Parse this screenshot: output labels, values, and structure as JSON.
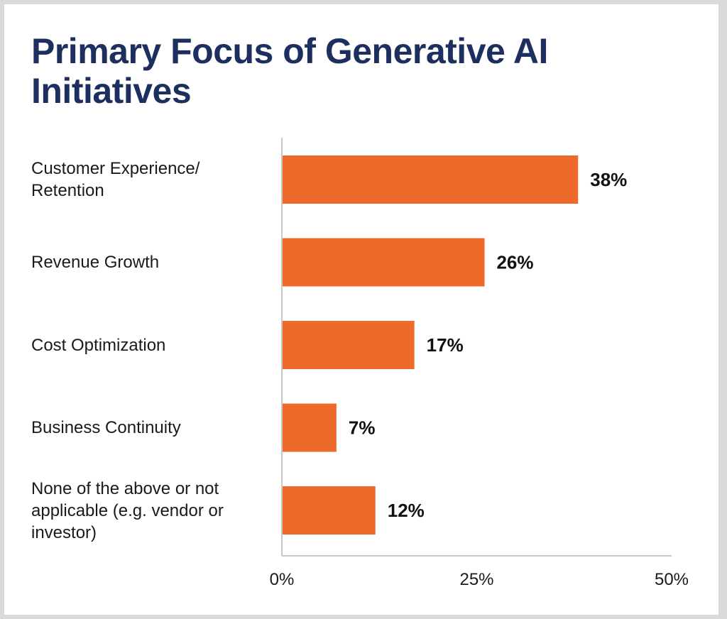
{
  "colors": {
    "bar": "#ee6a2a",
    "axis": "#c8c8c8",
    "title": "#1c2f5e"
  },
  "chart_data": {
    "type": "bar",
    "orientation": "horizontal",
    "title": "Primary Focus of Generative AI Initiatives",
    "categories": [
      "Customer Experience/\nRetention",
      "Revenue Growth",
      "Cost Optimization",
      "Business Continuity",
      "None of the above or not\napplicable (e.g. vendor or\ninvestor)"
    ],
    "values": [
      38,
      26,
      17,
      7,
      12
    ],
    "value_labels": [
      "38%",
      "26%",
      "17%",
      "7%",
      "12%"
    ],
    "xlim": [
      0,
      50
    ],
    "xticks": [
      0,
      25,
      50
    ],
    "xtick_labels": [
      "0%",
      "25%",
      "50%"
    ],
    "grid": false,
    "legend": "none"
  }
}
